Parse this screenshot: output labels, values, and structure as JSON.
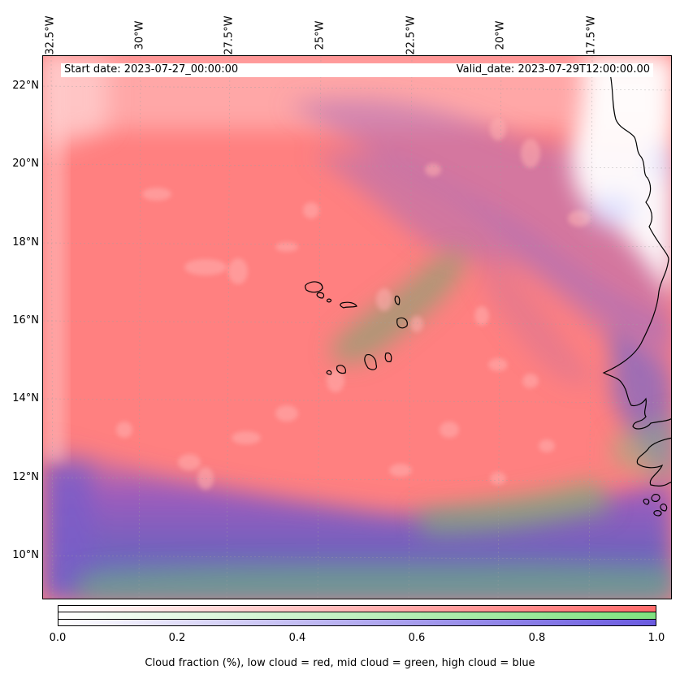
{
  "map": {
    "start_date_label": "Start date: 2023-07-27_00:00:00",
    "valid_date_label": "Valid_date: 2023-07-29T12:00:00.00",
    "lon_labels": [
      "32.5°W",
      "30°W",
      "27.5°W",
      "25°W",
      "22.5°W",
      "20°W",
      "17.5°W"
    ],
    "lat_labels": [
      "22°N",
      "20°N",
      "18°N",
      "16°N",
      "14°N",
      "12°N",
      "10°N"
    ],
    "colors": {
      "low_cloud": "#ff7f7f",
      "mid_cloud": "#7fd27f",
      "high_cloud": "#6a5acd",
      "coast": "#000000"
    }
  },
  "colorbar": {
    "ticks": [
      "0.0",
      "0.2",
      "0.4",
      "0.6",
      "0.8",
      "1.0"
    ],
    "label": "Cloud fraction (%), low cloud = red, mid cloud = green, high cloud = blue"
  }
}
